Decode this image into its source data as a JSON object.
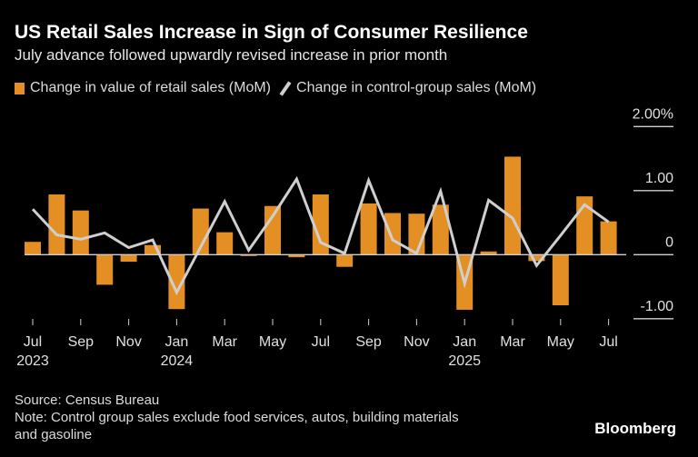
{
  "header": {
    "title": "US Retail Sales Increase in Sign of Consumer Resilience",
    "subtitle": "July advance followed upwardly revised increase in prior month"
  },
  "footer": {
    "source": "Source: Census Bureau",
    "note_line1": "Note: Control group sales exclude food services, autos, building materials",
    "note_line2": "and gasoline",
    "brand": "Bloomberg"
  },
  "chart_data": {
    "type": "bar+line",
    "title": "US Retail Sales Increase in Sign of Consumer Resilience",
    "subtitle": "July advance followed upwardly revised increase in prior month",
    "legend_position": "top-left",
    "grid": "short right-side gridlines",
    "ylim": [
      -1.0,
      2.0
    ],
    "yticks": [
      {
        "value": 2.0,
        "label": "2.00%"
      },
      {
        "value": 1.0,
        "label": "1.00"
      },
      {
        "value": 0,
        "label": "0"
      },
      {
        "value": -1.0,
        "label": "-1.00"
      }
    ],
    "categories": [
      "Jul 2023",
      "Aug 2023",
      "Sep 2023",
      "Oct 2023",
      "Nov 2023",
      "Dec 2023",
      "Jan 2024",
      "Feb 2024",
      "Mar 2024",
      "Apr 2024",
      "May 2024",
      "Jun 2024",
      "Jul 2024",
      "Aug 2024",
      "Sep 2024",
      "Oct 2024",
      "Nov 2024",
      "Dec 2024",
      "Jan 2025",
      "Feb 2025",
      "Mar 2025",
      "Apr 2025",
      "May 2025",
      "Jun 2025",
      "Jul 2025"
    ],
    "xtick_labels": [
      {
        "month": "Jul",
        "year": "2023"
      },
      {
        "month": "Sep",
        "year": ""
      },
      {
        "month": "Nov",
        "year": ""
      },
      {
        "month": "Jan",
        "year": "2024"
      },
      {
        "month": "Mar",
        "year": ""
      },
      {
        "month": "May",
        "year": ""
      },
      {
        "month": "Jul",
        "year": ""
      },
      {
        "month": "Sep",
        "year": ""
      },
      {
        "month": "Nov",
        "year": ""
      },
      {
        "month": "Jan",
        "year": "2025"
      },
      {
        "month": "Mar",
        "year": ""
      },
      {
        "month": "May",
        "year": ""
      },
      {
        "month": "Jul",
        "year": ""
      }
    ],
    "series": [
      {
        "name": "Change in value of retail sales (MoM)",
        "type": "bar",
        "color": "#e48f23",
        "values": [
          0.2,
          0.94,
          0.69,
          -0.47,
          -0.11,
          0.15,
          -0.85,
          0.72,
          0.35,
          -0.02,
          0.76,
          -0.04,
          0.94,
          -0.19,
          0.8,
          0.65,
          0.64,
          0.78,
          -0.86,
          0.05,
          1.53,
          -0.1,
          -0.79,
          0.91,
          0.52
        ]
      },
      {
        "name": "Change in control-group sales (MoM)",
        "type": "line",
        "color": "#cfcfcf",
        "values": [
          0.71,
          0.31,
          0.24,
          0.34,
          0.11,
          0.23,
          -0.59,
          0.12,
          0.83,
          0.07,
          0.6,
          1.18,
          0.19,
          0.02,
          1.16,
          0.23,
          0.02,
          0.99,
          -0.45,
          0.85,
          0.57,
          -0.17,
          0.3,
          0.78,
          0.51
        ]
      }
    ]
  }
}
